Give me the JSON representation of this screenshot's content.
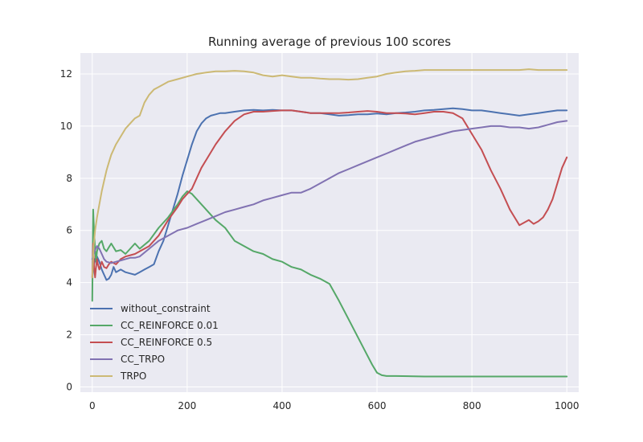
{
  "chart_data": {
    "type": "line",
    "title": "Running average of previous 100 scores",
    "xlabel": "",
    "ylabel": "",
    "xlim": [
      -25,
      1025
    ],
    "ylim": [
      -0.2,
      12.8
    ],
    "xticks": [
      0,
      200,
      400,
      600,
      800,
      1000
    ],
    "yticks": [
      0,
      2,
      4,
      6,
      8,
      10,
      12
    ],
    "grid": true,
    "legend_position": "lower-left",
    "background": "#EAEAF2",
    "series": [
      {
        "name": "without_constraint",
        "color": "#4C72B0",
        "x": [
          0,
          3,
          6,
          10,
          15,
          20,
          25,
          30,
          35,
          40,
          45,
          50,
          60,
          70,
          80,
          90,
          100,
          110,
          120,
          130,
          140,
          150,
          160,
          170,
          180,
          190,
          200,
          210,
          220,
          230,
          240,
          250,
          260,
          270,
          280,
          300,
          320,
          340,
          360,
          380,
          400,
          420,
          440,
          460,
          480,
          500,
          520,
          540,
          560,
          580,
          600,
          620,
          640,
          660,
          680,
          700,
          720,
          740,
          760,
          780,
          800,
          820,
          840,
          860,
          880,
          900,
          920,
          940,
          960,
          980,
          1000
        ],
        "y": [
          4.2,
          4.6,
          4.9,
          5.0,
          4.8,
          4.5,
          4.3,
          4.1,
          4.15,
          4.3,
          4.6,
          4.4,
          4.5,
          4.4,
          4.35,
          4.3,
          4.4,
          4.5,
          4.6,
          4.7,
          5.2,
          5.6,
          6.2,
          6.8,
          7.4,
          8.1,
          8.7,
          9.3,
          9.8,
          10.1,
          10.3,
          10.4,
          10.45,
          10.5,
          10.5,
          10.55,
          10.6,
          10.62,
          10.6,
          10.62,
          10.6,
          10.6,
          10.55,
          10.5,
          10.5,
          10.45,
          10.4,
          10.42,
          10.45,
          10.45,
          10.48,
          10.45,
          10.5,
          10.52,
          10.55,
          10.6,
          10.62,
          10.65,
          10.68,
          10.65,
          10.6,
          10.6,
          10.55,
          10.5,
          10.45,
          10.4,
          10.45,
          10.5,
          10.55,
          10.6,
          10.6
        ]
      },
      {
        "name": "CC_REINFORCE 0.01",
        "color": "#55A868",
        "x": [
          0,
          2,
          4,
          6,
          8,
          10,
          15,
          20,
          25,
          30,
          35,
          40,
          50,
          60,
          70,
          80,
          90,
          100,
          120,
          140,
          160,
          180,
          190,
          200,
          210,
          220,
          240,
          260,
          280,
          300,
          320,
          340,
          360,
          380,
          400,
          420,
          440,
          460,
          480,
          500,
          520,
          540,
          560,
          580,
          590,
          600,
          610,
          620,
          640,
          700,
          800,
          900,
          1000
        ],
        "y": [
          3.3,
          6.8,
          5.9,
          5.3,
          4.8,
          5.2,
          5.5,
          5.6,
          5.3,
          5.2,
          5.35,
          5.5,
          5.2,
          5.25,
          5.1,
          5.3,
          5.5,
          5.3,
          5.6,
          6.1,
          6.5,
          7.0,
          7.3,
          7.5,
          7.4,
          7.2,
          6.8,
          6.4,
          6.1,
          5.6,
          5.4,
          5.2,
          5.1,
          4.9,
          4.8,
          4.6,
          4.5,
          4.3,
          4.15,
          3.95,
          3.3,
          2.6,
          1.9,
          1.2,
          0.85,
          0.55,
          0.45,
          0.42,
          0.42,
          0.4,
          0.4,
          0.4,
          0.4
        ]
      },
      {
        "name": "CC_REINFORCE 0.5",
        "color": "#C44E52",
        "x": [
          0,
          2,
          4,
          6,
          8,
          10,
          12,
          15,
          20,
          25,
          30,
          35,
          40,
          50,
          60,
          70,
          80,
          90,
          100,
          120,
          140,
          160,
          180,
          190,
          200,
          210,
          220,
          230,
          240,
          250,
          260,
          280,
          300,
          320,
          340,
          360,
          380,
          400,
          420,
          440,
          460,
          480,
          500,
          520,
          540,
          560,
          580,
          600,
          620,
          640,
          660,
          680,
          700,
          720,
          740,
          760,
          780,
          800,
          820,
          840,
          860,
          880,
          890,
          900,
          910,
          920,
          930,
          940,
          950,
          960,
          970,
          980,
          990,
          1000
        ],
        "y": [
          4.2,
          5.5,
          4.6,
          4.2,
          4.6,
          4.9,
          4.7,
          4.5,
          4.8,
          4.6,
          4.55,
          4.7,
          4.8,
          4.7,
          4.9,
          5.0,
          5.05,
          5.1,
          5.2,
          5.4,
          5.8,
          6.4,
          6.9,
          7.2,
          7.4,
          7.6,
          8.0,
          8.4,
          8.7,
          9.0,
          9.3,
          9.8,
          10.2,
          10.45,
          10.55,
          10.55,
          10.58,
          10.6,
          10.6,
          10.55,
          10.5,
          10.5,
          10.5,
          10.5,
          10.52,
          10.55,
          10.58,
          10.55,
          10.5,
          10.5,
          10.48,
          10.45,
          10.5,
          10.55,
          10.55,
          10.5,
          10.3,
          9.7,
          9.1,
          8.3,
          7.6,
          6.8,
          6.5,
          6.2,
          6.3,
          6.4,
          6.25,
          6.35,
          6.5,
          6.8,
          7.2,
          7.8,
          8.4,
          8.8
        ]
      },
      {
        "name": "CC_TRPO",
        "color": "#8172B2",
        "x": [
          0,
          5,
          10,
          15,
          20,
          25,
          30,
          40,
          50,
          60,
          70,
          80,
          90,
          100,
          120,
          140,
          160,
          180,
          200,
          220,
          240,
          260,
          280,
          300,
          320,
          340,
          360,
          380,
          400,
          420,
          440,
          460,
          480,
          500,
          520,
          540,
          560,
          580,
          600,
          620,
          640,
          660,
          680,
          700,
          720,
          740,
          760,
          780,
          800,
          820,
          840,
          860,
          880,
          900,
          920,
          940,
          960,
          980,
          1000
        ],
        "y": [
          4.9,
          5.2,
          5.4,
          5.3,
          5.1,
          4.9,
          4.8,
          4.75,
          4.8,
          4.85,
          4.9,
          4.95,
          4.95,
          5.0,
          5.3,
          5.6,
          5.8,
          6.0,
          6.1,
          6.25,
          6.4,
          6.55,
          6.7,
          6.8,
          6.9,
          7.0,
          7.15,
          7.25,
          7.35,
          7.45,
          7.45,
          7.6,
          7.8,
          8.0,
          8.2,
          8.35,
          8.5,
          8.65,
          8.8,
          8.95,
          9.1,
          9.25,
          9.4,
          9.5,
          9.6,
          9.7,
          9.8,
          9.85,
          9.9,
          9.95,
          10.0,
          10.0,
          9.95,
          9.95,
          9.9,
          9.95,
          10.05,
          10.15,
          10.2
        ]
      },
      {
        "name": "TRPO",
        "color": "#CCB974",
        "x": [
          0,
          3,
          6,
          10,
          15,
          20,
          25,
          30,
          35,
          40,
          50,
          60,
          70,
          80,
          90,
          100,
          110,
          120,
          130,
          140,
          150,
          160,
          180,
          200,
          220,
          240,
          260,
          280,
          300,
          320,
          340,
          360,
          380,
          400,
          420,
          440,
          460,
          480,
          500,
          520,
          540,
          560,
          580,
          600,
          620,
          640,
          660,
          680,
          700,
          720,
          740,
          760,
          780,
          800,
          820,
          840,
          860,
          880,
          900,
          920,
          940,
          960,
          980,
          1000
        ],
        "y": [
          4.2,
          5.4,
          6.0,
          6.5,
          7.0,
          7.5,
          7.9,
          8.3,
          8.6,
          8.9,
          9.3,
          9.6,
          9.9,
          10.1,
          10.3,
          10.4,
          10.9,
          11.2,
          11.4,
          11.5,
          11.6,
          11.7,
          11.8,
          11.9,
          12.0,
          12.05,
          12.1,
          12.1,
          12.12,
          12.1,
          12.05,
          11.95,
          11.9,
          11.95,
          11.9,
          11.85,
          11.85,
          11.82,
          11.8,
          11.8,
          11.78,
          11.8,
          11.85,
          11.9,
          12.0,
          12.05,
          12.1,
          12.12,
          12.15,
          12.15,
          12.15,
          12.15,
          12.15,
          12.15,
          12.15,
          12.15,
          12.15,
          12.15,
          12.15,
          12.18,
          12.15,
          12.15,
          12.15,
          12.15
        ]
      }
    ]
  }
}
